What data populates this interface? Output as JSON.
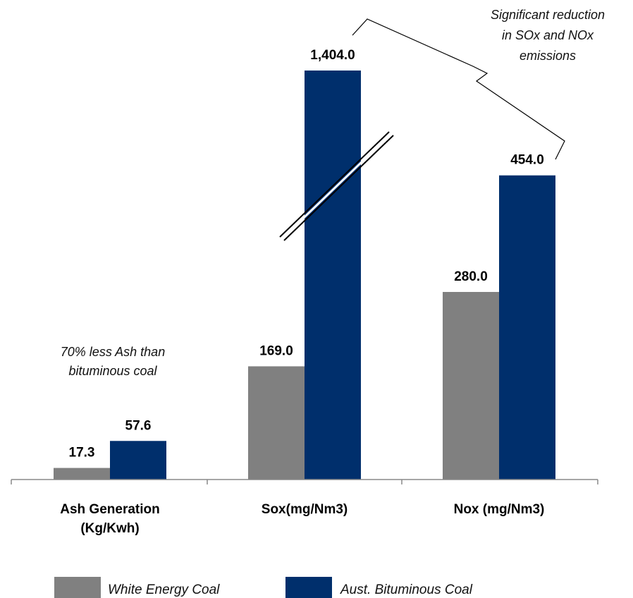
{
  "chart_data": {
    "type": "bar",
    "categories": [
      "Ash Generation (Kg/Kwh)",
      "Sox(mg/Nm3)",
      "Nox (mg/Nm3)"
    ],
    "category_lines": [
      [
        "Ash Generation",
        "(Kg/Kwh)"
      ],
      [
        "Sox(mg/Nm3)"
      ],
      [
        "Nox (mg/Nm3)"
      ]
    ],
    "series": [
      {
        "name": "White Energy Coal",
        "values": [
          17.3,
          169.0,
          280.0
        ],
        "labels": [
          "17.3",
          "169.0",
          "280.0"
        ],
        "color": "#808080"
      },
      {
        "name": "Aust. Bituminous Coal",
        "values": [
          57.6,
          1404.0,
          454.0
        ],
        "labels": [
          "57.6",
          "1,404.0",
          "454.0"
        ],
        "color": "#002f6c"
      }
    ],
    "axis_break": {
      "category": "Sox(mg/Nm3)",
      "series": "Aust. Bituminous Coal"
    },
    "annotations": [
      {
        "lines": [
          "70% less Ash than",
          "bituminous coal"
        ]
      },
      {
        "lines": [
          "Significant reduction",
          "in SOx and NOx",
          "emissions"
        ]
      }
    ],
    "legend_position": "bottom",
    "grid": false,
    "ylim": [
      0,
      600
    ]
  }
}
